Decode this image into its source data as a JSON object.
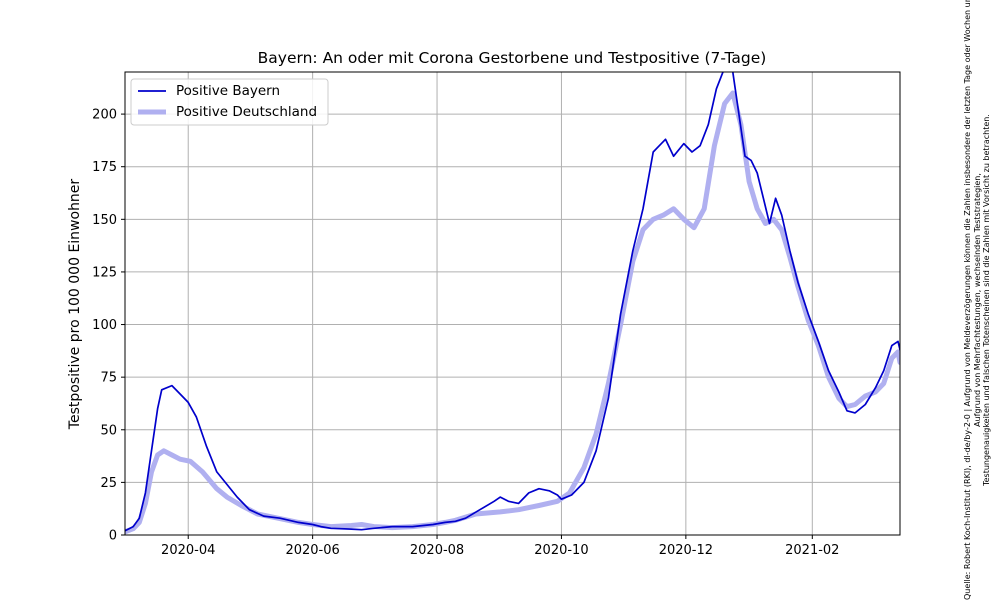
{
  "chart_data": {
    "type": "line",
    "title": "Bayern: An oder mit Corona Gestorbene und Testpositive (7-Tage)",
    "xlabel": "",
    "ylabel": "Testpositive pro 100 000 Einwohner",
    "xlim": [
      "2020-03-01",
      "2021-03-16"
    ],
    "ylim": [
      0,
      220
    ],
    "x_ticks": [
      "2020-04",
      "2020-06",
      "2020-08",
      "2020-10",
      "2020-12",
      "2021-02"
    ],
    "y_ticks": [
      0,
      25,
      50,
      75,
      100,
      125,
      150,
      175,
      200
    ],
    "grid": true,
    "legend_position": "top-left",
    "series": [
      {
        "name": "Positive Bayern",
        "color": "#0000cc",
        "style": "thin",
        "points": [
          [
            "2020-03-01",
            2
          ],
          [
            "2020-03-05",
            4
          ],
          [
            "2020-03-08",
            8
          ],
          [
            "2020-03-11",
            20
          ],
          [
            "2020-03-14",
            40
          ],
          [
            "2020-03-17",
            60
          ],
          [
            "2020-03-19",
            69
          ],
          [
            "2020-03-24",
            71
          ],
          [
            "2020-03-28",
            67
          ],
          [
            "2020-04-01",
            63
          ],
          [
            "2020-04-05",
            56
          ],
          [
            "2020-04-10",
            42
          ],
          [
            "2020-04-15",
            30
          ],
          [
            "2020-04-20",
            24
          ],
          [
            "2020-04-25",
            18
          ],
          [
            "2020-05-01",
            12
          ],
          [
            "2020-05-08",
            9
          ],
          [
            "2020-05-16",
            8
          ],
          [
            "2020-05-25",
            6
          ],
          [
            "2020-06-01",
            5
          ],
          [
            "2020-06-05",
            4
          ],
          [
            "2020-06-10",
            3.2
          ],
          [
            "2020-06-20",
            2.8
          ],
          [
            "2020-06-25",
            2.5
          ],
          [
            "2020-07-01",
            3.2
          ],
          [
            "2020-07-10",
            4
          ],
          [
            "2020-07-20",
            4
          ],
          [
            "2020-07-30",
            5
          ],
          [
            "2020-08-05",
            6
          ],
          [
            "2020-08-10",
            6.5
          ],
          [
            "2020-08-15",
            8
          ],
          [
            "2020-08-22",
            12
          ],
          [
            "2020-08-29",
            16
          ],
          [
            "2020-09-01",
            18
          ],
          [
            "2020-09-05",
            16
          ],
          [
            "2020-09-10",
            15
          ],
          [
            "2020-09-15",
            20
          ],
          [
            "2020-09-20",
            22
          ],
          [
            "2020-09-25",
            21
          ],
          [
            "2020-09-29",
            19
          ],
          [
            "2020-10-01",
            17
          ],
          [
            "2020-10-06",
            19
          ],
          [
            "2020-10-12",
            25
          ],
          [
            "2020-10-18",
            40
          ],
          [
            "2020-10-24",
            65
          ],
          [
            "2020-10-30",
            105
          ],
          [
            "2020-11-05",
            135
          ],
          [
            "2020-11-10",
            155
          ],
          [
            "2020-11-15",
            182
          ],
          [
            "2020-11-18",
            185
          ],
          [
            "2020-11-21",
            188
          ],
          [
            "2020-11-25",
            180
          ],
          [
            "2020-11-30",
            186
          ],
          [
            "2020-12-04",
            182
          ],
          [
            "2020-12-08",
            185
          ],
          [
            "2020-12-12",
            195
          ],
          [
            "2020-12-16",
            212
          ],
          [
            "2020-12-20",
            222
          ],
          [
            "2020-12-24",
            220
          ],
          [
            "2020-12-27",
            200
          ],
          [
            "2020-12-30",
            180
          ],
          [
            "2021-01-02",
            178
          ],
          [
            "2021-01-05",
            172
          ],
          [
            "2021-01-08",
            160
          ],
          [
            "2021-01-11",
            148
          ],
          [
            "2021-01-14",
            160
          ],
          [
            "2021-01-17",
            152
          ],
          [
            "2021-01-21",
            135
          ],
          [
            "2021-01-25",
            120
          ],
          [
            "2021-01-30",
            105
          ],
          [
            "2021-02-04",
            92
          ],
          [
            "2021-02-09",
            78
          ],
          [
            "2021-02-14",
            68
          ],
          [
            "2021-02-18",
            59
          ],
          [
            "2021-02-22",
            58
          ],
          [
            "2021-02-27",
            62
          ],
          [
            "2021-03-04",
            70
          ],
          [
            "2021-03-08",
            78
          ],
          [
            "2021-03-12",
            90
          ],
          [
            "2021-03-15",
            92
          ],
          [
            "2021-03-16",
            88
          ]
        ]
      },
      {
        "name": "Positive Deutschland",
        "color": "#b0b0f0",
        "style": "thick",
        "points": [
          [
            "2020-03-01",
            1.5
          ],
          [
            "2020-03-05",
            3
          ],
          [
            "2020-03-08",
            6
          ],
          [
            "2020-03-11",
            15
          ],
          [
            "2020-03-14",
            30
          ],
          [
            "2020-03-17",
            38
          ],
          [
            "2020-03-20",
            40
          ],
          [
            "2020-03-24",
            38
          ],
          [
            "2020-03-28",
            36
          ],
          [
            "2020-04-02",
            35
          ],
          [
            "2020-04-08",
            30
          ],
          [
            "2020-04-15",
            22
          ],
          [
            "2020-04-20",
            18
          ],
          [
            "2020-04-27",
            14
          ],
          [
            "2020-05-05",
            10
          ],
          [
            "2020-05-15",
            8
          ],
          [
            "2020-05-25",
            6
          ],
          [
            "2020-06-01",
            5
          ],
          [
            "2020-06-10",
            4
          ],
          [
            "2020-06-20",
            4.5
          ],
          [
            "2020-06-25",
            5
          ],
          [
            "2020-07-01",
            4
          ],
          [
            "2020-07-10",
            3.5
          ],
          [
            "2020-07-20",
            4
          ],
          [
            "2020-07-30",
            5
          ],
          [
            "2020-08-05",
            6
          ],
          [
            "2020-08-10",
            7
          ],
          [
            "2020-08-20",
            10
          ],
          [
            "2020-09-01",
            11
          ],
          [
            "2020-09-10",
            12
          ],
          [
            "2020-09-20",
            14
          ],
          [
            "2020-09-29",
            16
          ],
          [
            "2020-10-05",
            20
          ],
          [
            "2020-10-12",
            32
          ],
          [
            "2020-10-18",
            48
          ],
          [
            "2020-10-24",
            72
          ],
          [
            "2020-10-30",
            100
          ],
          [
            "2020-11-05",
            130
          ],
          [
            "2020-11-10",
            145
          ],
          [
            "2020-11-15",
            150
          ],
          [
            "2020-11-20",
            152
          ],
          [
            "2020-11-25",
            155
          ],
          [
            "2020-11-30",
            150
          ],
          [
            "2020-12-05",
            146
          ],
          [
            "2020-12-10",
            155
          ],
          [
            "2020-12-15",
            185
          ],
          [
            "2020-12-20",
            205
          ],
          [
            "2020-12-24",
            210
          ],
          [
            "2020-12-28",
            195
          ],
          [
            "2021-01-01",
            168
          ],
          [
            "2021-01-05",
            155
          ],
          [
            "2021-01-09",
            148
          ],
          [
            "2021-01-13",
            150
          ],
          [
            "2021-01-17",
            145
          ],
          [
            "2021-01-21",
            132
          ],
          [
            "2021-01-25",
            118
          ],
          [
            "2021-01-30",
            102
          ],
          [
            "2021-02-04",
            90
          ],
          [
            "2021-02-09",
            75
          ],
          [
            "2021-02-14",
            65
          ],
          [
            "2021-02-18",
            61
          ],
          [
            "2021-02-22",
            62
          ],
          [
            "2021-02-27",
            66
          ],
          [
            "2021-03-04",
            68
          ],
          [
            "2021-03-08",
            72
          ],
          [
            "2021-03-12",
            84
          ],
          [
            "2021-03-15",
            87
          ],
          [
            "2021-03-16",
            82
          ]
        ]
      }
    ]
  },
  "source_note": {
    "lines": [
      "Quelle: Robert Koch-Institut (RKI), dl-de/by-2-0 | Aufgrund von Meldeverzögerungen können die Zahlen insbesondere der letzten Tage oder Wochen unvollständig sein.",
      "Aufgrund von Mehrfachtestungen, wechselnden Teststrategien,",
      "Testungenauigkeiten und falschen Totenscheinen sind die Zahlen mit Vorsicht zu betrachten."
    ]
  }
}
